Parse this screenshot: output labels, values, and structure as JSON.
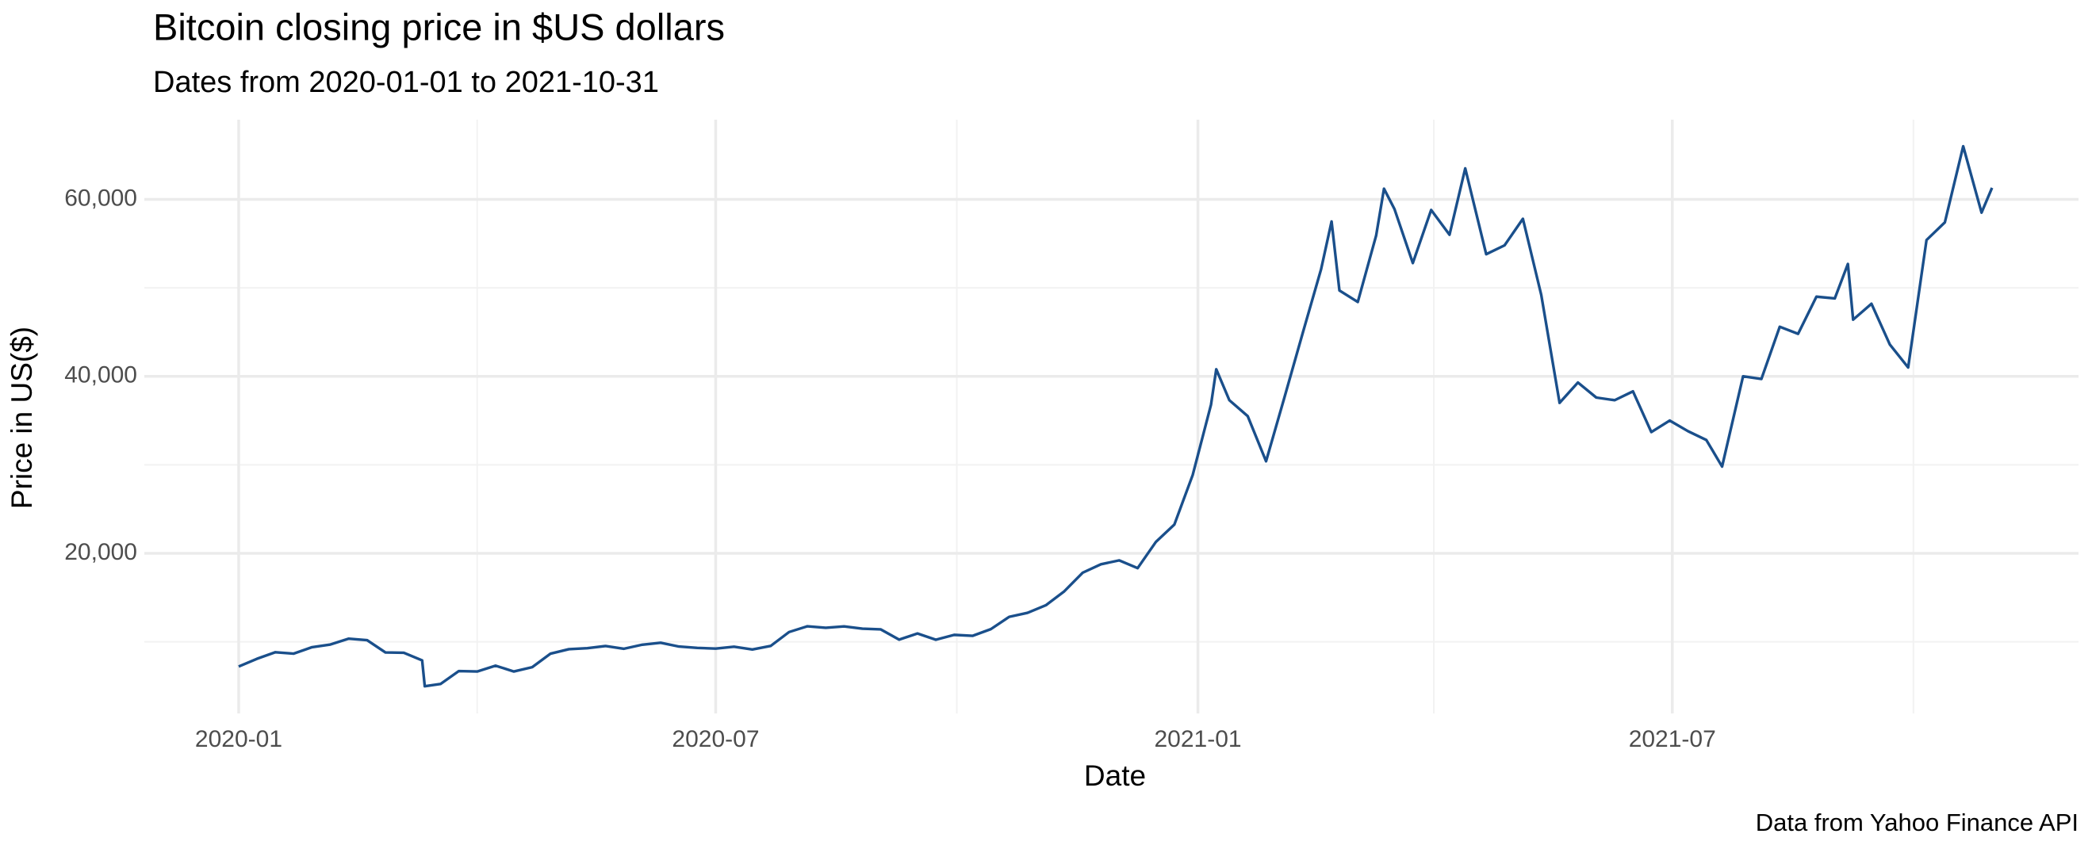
{
  "chart_data": {
    "type": "line",
    "title": "Bitcoin closing price in $US dollars",
    "subtitle": "Dates from 2020-01-01 to 2021-10-31",
    "x_label": "Date",
    "y_label": "Price in US($)",
    "caption": "Data from Yahoo Finance API",
    "x": [
      "2020-01-01",
      "2020-01-08",
      "2020-01-15",
      "2020-01-22",
      "2020-01-29",
      "2020-02-05",
      "2020-02-12",
      "2020-02-19",
      "2020-02-26",
      "2020-03-04",
      "2020-03-11",
      "2020-03-12",
      "2020-03-18",
      "2020-03-25",
      "2020-04-01",
      "2020-04-08",
      "2020-04-15",
      "2020-04-22",
      "2020-04-29",
      "2020-05-06",
      "2020-05-13",
      "2020-05-20",
      "2020-05-27",
      "2020-06-03",
      "2020-06-10",
      "2020-06-17",
      "2020-06-24",
      "2020-07-01",
      "2020-07-08",
      "2020-07-15",
      "2020-07-22",
      "2020-07-29",
      "2020-08-05",
      "2020-08-12",
      "2020-08-19",
      "2020-08-26",
      "2020-09-02",
      "2020-09-09",
      "2020-09-16",
      "2020-09-23",
      "2020-09-30",
      "2020-10-07",
      "2020-10-14",
      "2020-10-21",
      "2020-10-28",
      "2020-11-04",
      "2020-11-11",
      "2020-11-18",
      "2020-11-25",
      "2020-12-02",
      "2020-12-09",
      "2020-12-16",
      "2020-12-23",
      "2020-12-30",
      "2021-01-06",
      "2021-01-08",
      "2021-01-13",
      "2021-01-20",
      "2021-01-27",
      "2021-02-03",
      "2021-02-10",
      "2021-02-17",
      "2021-02-21",
      "2021-02-24",
      "2021-03-03",
      "2021-03-10",
      "2021-03-13",
      "2021-03-17",
      "2021-03-24",
      "2021-03-31",
      "2021-04-07",
      "2021-04-13",
      "2021-04-21",
      "2021-04-28",
      "2021-05-05",
      "2021-05-12",
      "2021-05-19",
      "2021-05-26",
      "2021-06-02",
      "2021-06-09",
      "2021-06-16",
      "2021-06-23",
      "2021-06-30",
      "2021-07-07",
      "2021-07-14",
      "2021-07-20",
      "2021-07-28",
      "2021-08-04",
      "2021-08-11",
      "2021-08-18",
      "2021-08-25",
      "2021-09-01",
      "2021-09-06",
      "2021-09-08",
      "2021-09-15",
      "2021-09-22",
      "2021-09-29",
      "2021-10-06",
      "2021-10-13",
      "2021-10-20",
      "2021-10-27",
      "2021-10-31"
    ],
    "series": [
      {
        "name": "Close",
        "color": "#1a4f8b",
        "values": [
          7200,
          8080,
          8820,
          8660,
          9390,
          9690,
          10350,
          10180,
          8790,
          8760,
          7900,
          4970,
          5230,
          6690,
          6640,
          7300,
          6640,
          7130,
          8660,
          9160,
          9270,
          9520,
          9210,
          9670,
          9890,
          9460,
          9310,
          9230,
          9440,
          9130,
          9530,
          11100,
          11750,
          11580,
          11740,
          11480,
          11400,
          10240,
          10940,
          10230,
          10780,
          10670,
          11430,
          12820,
          13270,
          14130,
          15700,
          17800,
          18760,
          19200,
          18320,
          21300,
          23240,
          28840,
          36800,
          40800,
          37300,
          35500,
          30400,
          37600,
          44900,
          52100,
          57500,
          49700,
          48400,
          55900,
          61200,
          58900,
          52800,
          58800,
          56000,
          63500,
          53800,
          54800,
          57800,
          49200,
          37000,
          39300,
          37600,
          37300,
          38300,
          33700,
          35000,
          33800,
          32800,
          29800,
          40000,
          39700,
          45600,
          44800,
          49000,
          48800,
          52700,
          46400,
          48200,
          43600,
          41000,
          55400,
          57400,
          66000,
          58500,
          61300
        ]
      }
    ],
    "xlim": [
      "2019-11-26",
      "2021-12-03"
    ],
    "xticks": [
      {
        "value": "2020-01-01",
        "label": "2020-01"
      },
      {
        "value": "2020-07-01",
        "label": "2020-07"
      },
      {
        "value": "2021-01-01",
        "label": "2021-01"
      },
      {
        "value": "2021-07-01",
        "label": "2021-07"
      }
    ],
    "xminor": [
      "2020-04-01",
      "2020-10-01",
      "2021-04-01",
      "2021-10-01"
    ],
    "ylim": [
      1900,
      69000
    ],
    "yticks": [
      {
        "value": 20000,
        "label": "20,000"
      },
      {
        "value": 40000,
        "label": "40,000"
      },
      {
        "value": 60000,
        "label": "60,000"
      }
    ],
    "yminor": [
      10000,
      30000,
      50000
    ],
    "grid": true
  }
}
